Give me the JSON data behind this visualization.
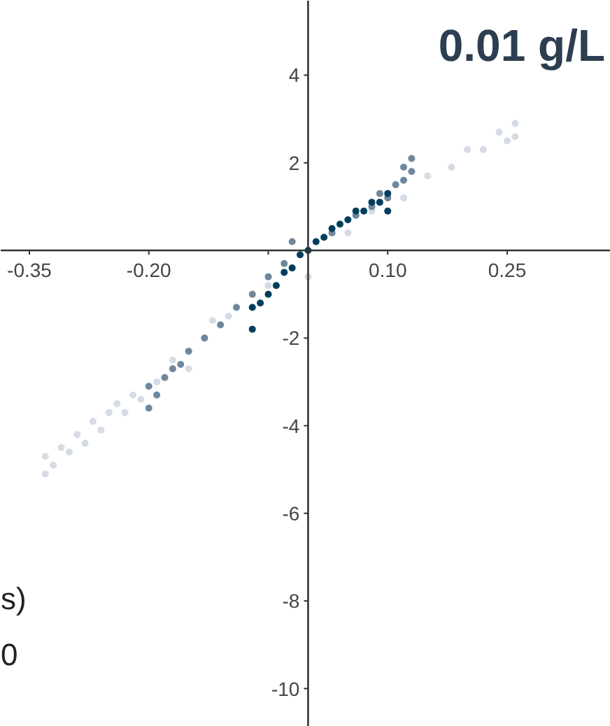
{
  "chart_data": {
    "type": "scatter",
    "title": "0.01 g/L",
    "xlim": [
      -0.386,
      0.38
    ],
    "ylim": [
      -10.87,
      5.7
    ],
    "xticks": [
      -0.35,
      {
        "value": -0.2,
        "label": "-0.20"
      },
      {
        "value": -0.05,
        "label": null
      },
      {
        "value": 0.1,
        "label": "0.10"
      },
      0.25
    ],
    "yticks": [
      -10,
      -8,
      -6,
      -4,
      {
        "value": -2,
        "label": "-2"
      },
      2,
      4
    ],
    "grid": false,
    "marker": "circle",
    "annotations": [
      "s)",
      "0"
    ],
    "series": [
      {
        "color": "#d5dce5",
        "x": [
          -0.33,
          -0.33,
          -0.32,
          -0.31,
          -0.3,
          -0.29,
          -0.28,
          -0.27,
          -0.26,
          -0.25,
          -0.24,
          -0.23,
          -0.22,
          -0.21,
          -0.19,
          -0.17,
          -0.15,
          -0.12,
          -0.1,
          -0.05,
          0.0,
          0.05,
          0.08,
          0.12,
          0.15,
          0.18,
          0.2,
          0.22,
          0.24,
          0.25,
          0.26,
          0.26
        ],
        "values": [
          -5.1,
          -4.7,
          -4.9,
          -4.5,
          -4.6,
          -4.2,
          -4.4,
          -3.9,
          -4.1,
          -3.7,
          -3.5,
          -3.7,
          -3.3,
          -3.4,
          -3.0,
          -2.5,
          -2.7,
          -1.6,
          -1.5,
          -0.8,
          -0.6,
          0.4,
          0.9,
          1.2,
          1.7,
          1.9,
          2.3,
          2.3,
          2.7,
          2.5,
          2.9,
          2.6
        ]
      },
      {
        "color": "#6f879c",
        "x": [
          -0.2,
          -0.2,
          -0.19,
          -0.18,
          -0.17,
          -0.16,
          -0.15,
          -0.13,
          -0.11,
          -0.09,
          -0.07,
          -0.05,
          -0.03,
          -0.02,
          0.03,
          0.06,
          0.08,
          0.09,
          0.1,
          0.11,
          0.12,
          0.13,
          0.13,
          0.12
        ],
        "values": [
          -3.6,
          -3.1,
          -3.3,
          -2.9,
          -2.7,
          -2.6,
          -2.3,
          -2.0,
          -1.7,
          -1.3,
          -1.0,
          -0.6,
          -0.3,
          0.2,
          0.4,
          0.8,
          1.0,
          1.3,
          1.2,
          1.5,
          1.6,
          1.8,
          2.1,
          1.9
        ]
      },
      {
        "color": "#003f5c",
        "x": [
          -0.07,
          -0.07,
          -0.06,
          -0.05,
          -0.04,
          -0.03,
          -0.02,
          -0.01,
          0.0,
          0.01,
          0.02,
          0.03,
          0.04,
          0.05,
          0.06,
          0.07,
          0.08,
          0.09,
          0.1,
          0.1
        ],
        "values": [
          -1.8,
          -1.3,
          -1.2,
          -1.0,
          -0.8,
          -0.5,
          -0.4,
          -0.1,
          0.0,
          0.2,
          0.3,
          0.5,
          0.6,
          0.7,
          0.9,
          0.9,
          1.1,
          1.1,
          1.3,
          0.9
        ]
      }
    ]
  }
}
